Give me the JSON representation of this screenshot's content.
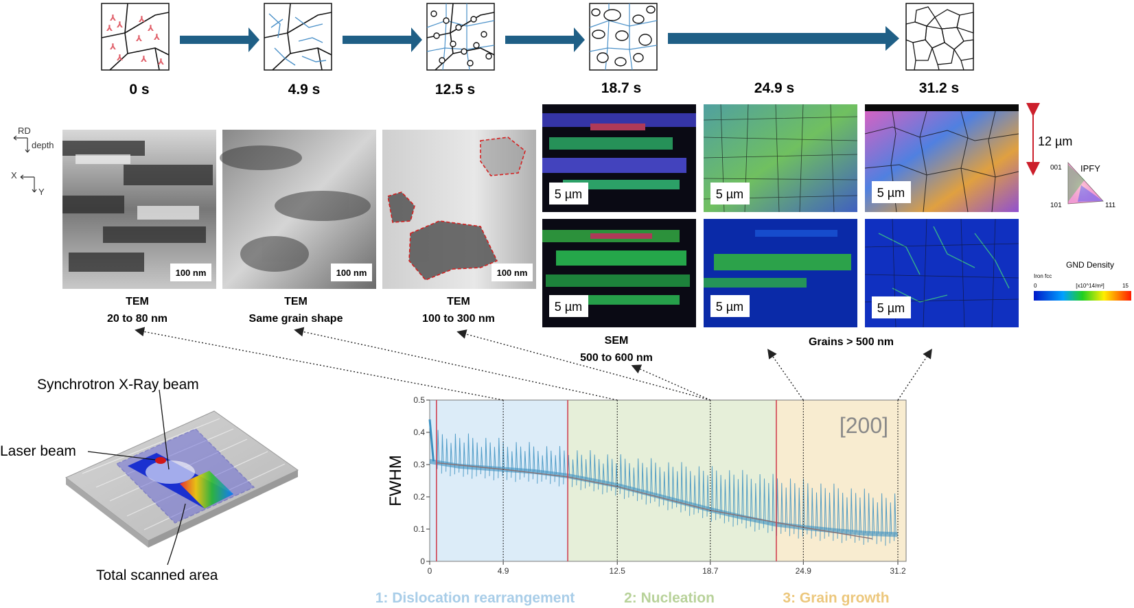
{
  "timeline": {
    "times": [
      "0 s",
      "4.9 s",
      "12.5 s",
      "18.7 s",
      "24.9 s",
      "31.2 s"
    ]
  },
  "orientation": {
    "top": {
      "a": "RD",
      "b": "depth"
    },
    "bottom": {
      "a": "X",
      "b": "Y"
    }
  },
  "tem_panels": [
    {
      "scale": "100 nm",
      "caption_1": "TEM",
      "caption_2": "20 to 80 nm"
    },
    {
      "scale": "100 nm",
      "caption_1": "TEM",
      "caption_2": "Same grain shape"
    },
    {
      "scale": "100 nm",
      "caption_1": "TEM",
      "caption_2": "100 to 300 nm"
    }
  ],
  "ebsd_panels": {
    "scale": "5 µm",
    "caption_sem_1": "SEM",
    "caption_sem_2": "500 to 600 nm",
    "caption_grains": "Grains > 500 nm",
    "height_marker": "12 µm"
  },
  "ipf_legend": {
    "title": "IPFY",
    "c001": "001",
    "c101": "101",
    "c111": "111"
  },
  "gnd_legend": {
    "title": "GND Density",
    "subtitle": "Iron fcc",
    "min": "0",
    "unit": "[x10^14/m²]",
    "max": "15"
  },
  "schematic": {
    "synchrotron": "Synchrotron X-Ray beam",
    "laser": "Laser beam",
    "scanned": "Total scanned area"
  },
  "colors": {
    "arrow": "#1f5f86",
    "phase1": "#dcecf8",
    "phase2": "#e6efd9",
    "phase3": "#f8ecd0",
    "phase1_text": "#a8cde8",
    "phase2_text": "#b8d29a",
    "phase3_text": "#ecc77c",
    "signal": "#3a8fc0",
    "phase_line": "#d04050"
  },
  "chart_data": {
    "type": "line",
    "title": "",
    "ylabel": "FWHM",
    "xlabel": "",
    "annotation": "[200]",
    "xlim": [
      0,
      31.2
    ],
    "ylim": [
      0,
      0.5
    ],
    "x_ticks": [
      0,
      4.9,
      12.5,
      18.7,
      24.9,
      31.2
    ],
    "x_tick_labels": [
      "0",
      "4.9",
      "12.5",
      "18.7",
      "24.9",
      "31.2"
    ],
    "y_ticks": [
      0,
      0.1,
      0.2,
      0.3,
      0.4,
      0.5
    ],
    "y_tick_labels": [
      "0",
      "0.1",
      "0.2",
      "0.3",
      "0.4",
      "0.5"
    ],
    "phase_boundaries": [
      0.45,
      9.2,
      23.1
    ],
    "phases": [
      {
        "name": "1: Dislocation rearrangement",
        "start": 0,
        "end": 9.2
      },
      {
        "name": "2: Nucleation",
        "start": 9.2,
        "end": 23.1
      },
      {
        "name": "3: Grain growth",
        "start": 23.1,
        "end": 31.2
      }
    ],
    "trend": {
      "x": [
        0,
        2,
        4.9,
        7,
        9.2,
        12.5,
        15,
        18.7,
        21,
        23.1,
        24.9,
        27,
        29,
        31.2
      ],
      "y": [
        0.31,
        0.295,
        0.285,
        0.278,
        0.265,
        0.235,
        0.205,
        0.16,
        0.135,
        0.115,
        0.105,
        0.095,
        0.087,
        0.083
      ]
    },
    "peaks": {
      "spacing": 0.29,
      "start": 0.5,
      "end": 31.0,
      "max_envelope": {
        "x": [
          0,
          2,
          5,
          9,
          13,
          18,
          23,
          27,
          31
        ],
        "y": [
          0.41,
          0.4,
          0.38,
          0.355,
          0.33,
          0.3,
          0.27,
          0.24,
          0.21
        ]
      }
    },
    "fit_curve": {
      "x": [
        0.5,
        4.9,
        9.2,
        12.5,
        18.7,
        24.9,
        29.5
      ],
      "y": [
        0.305,
        0.285,
        0.262,
        0.232,
        0.158,
        0.105,
        0.07
      ]
    }
  }
}
